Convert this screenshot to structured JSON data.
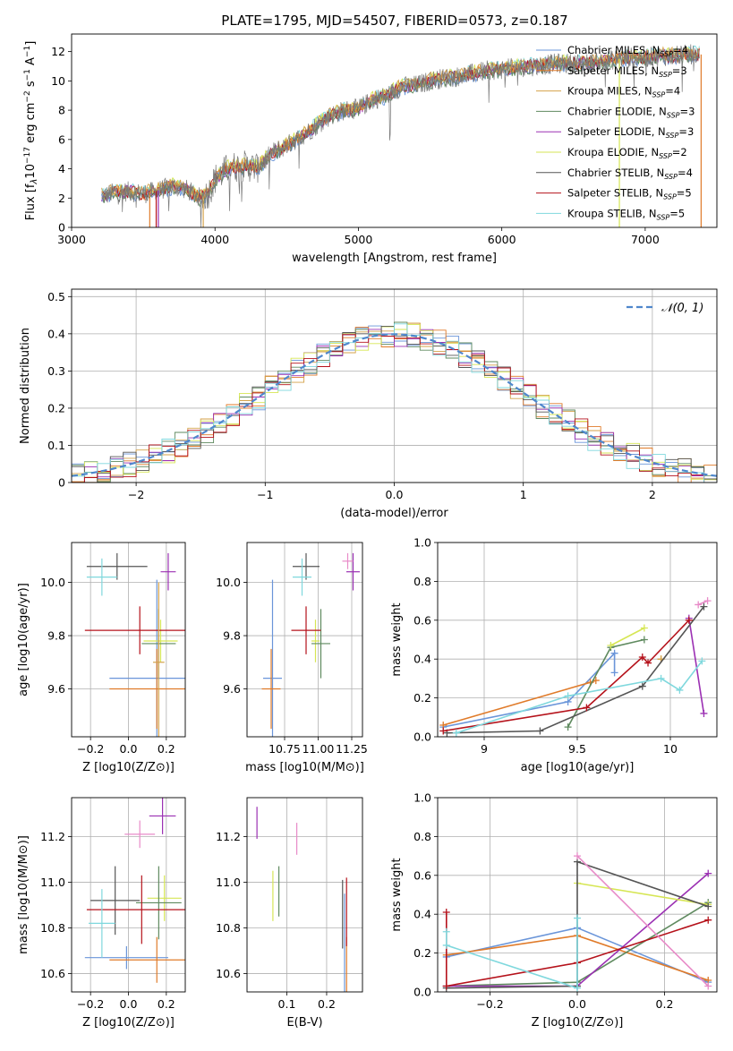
{
  "title": "PLATE=1795, MJD=54507, FIBERID=0573, z=0.187",
  "models": [
    {
      "name": "Chabrier MILES",
      "nssp": "4",
      "color": "#6a95d9"
    },
    {
      "name": "Salpeter MILES",
      "nssp": "3",
      "color": "#e07b2a"
    },
    {
      "name": "Kroupa MILES",
      "nssp": "4",
      "color": "#d4a24a"
    },
    {
      "name": "Chabrier ELODIE",
      "nssp": "3",
      "color": "#5f8a5f"
    },
    {
      "name": "Salpeter ELODIE",
      "nssp": "3",
      "color": "#9b30b3"
    },
    {
      "name": "Kroupa ELODIE",
      "nssp": "2",
      "color": "#d6e654"
    },
    {
      "name": "Chabrier STELIB",
      "nssp": "4",
      "color": "#555555"
    },
    {
      "name": "Salpeter STELIB",
      "nssp": "5",
      "color": "#b5121b"
    },
    {
      "name": "Kroupa STELIB",
      "nssp": "5",
      "color": "#7fd8dd"
    }
  ],
  "chart_data": [
    {
      "type": "line",
      "name": "spectrum",
      "xlabel": "wavelength [Angstrom, rest frame]",
      "ylabel": "Flux [f_λ 10^-17 erg cm^-2 s^-1 A^-1]",
      "xlim": [
        3000,
        7500
      ],
      "ylim": [
        0,
        13.2
      ],
      "xticks": [
        3000,
        4000,
        5000,
        6000,
        7000
      ],
      "yticks": [
        0,
        2,
        4,
        6,
        8,
        10,
        12
      ],
      "legend": "right",
      "continuum": [
        [
          3210,
          2.1
        ],
        [
          3300,
          2.4
        ],
        [
          3400,
          2.45
        ],
        [
          3500,
          2.3
        ],
        [
          3600,
          2.5
        ],
        [
          3700,
          2.8
        ],
        [
          3800,
          2.6
        ],
        [
          3850,
          2.3
        ],
        [
          3900,
          2.0
        ],
        [
          3950,
          2.3
        ],
        [
          4000,
          3.3
        ],
        [
          4100,
          4.1
        ],
        [
          4200,
          4.2
        ],
        [
          4300,
          4.1
        ],
        [
          4400,
          5.1
        ],
        [
          4500,
          5.6
        ],
        [
          4600,
          6.2
        ],
        [
          4700,
          6.9
        ],
        [
          4800,
          7.6
        ],
        [
          4900,
          8.0
        ],
        [
          5000,
          8.1
        ],
        [
          5100,
          8.7
        ],
        [
          5200,
          9.0
        ],
        [
          5300,
          9.6
        ],
        [
          5400,
          9.7
        ],
        [
          5500,
          10.0
        ],
        [
          5600,
          10.2
        ],
        [
          5700,
          10.3
        ],
        [
          5800,
          10.5
        ],
        [
          5900,
          10.7
        ],
        [
          6000,
          10.8
        ],
        [
          6100,
          10.9
        ],
        [
          6200,
          11.0
        ],
        [
          6300,
          11.1
        ],
        [
          6400,
          11.2
        ],
        [
          6500,
          11.2
        ],
        [
          6600,
          11.2
        ],
        [
          6700,
          11.3
        ],
        [
          6800,
          11.5
        ],
        [
          6900,
          11.6
        ],
        [
          7000,
          11.6
        ],
        [
          7100,
          11.7
        ],
        [
          7200,
          11.7
        ],
        [
          7300,
          11.8
        ],
        [
          7380,
          11.8
        ]
      ]
    },
    {
      "type": "bar",
      "name": "residual-histogram",
      "xlabel": "(data-model)/error",
      "ylabel": "Normed distribution",
      "xlim": [
        -2.5,
        2.5
      ],
      "ylim": [
        0,
        0.52
      ],
      "xticks": [
        -2,
        -1,
        0,
        1,
        2
      ],
      "yticks": [
        0.0,
        0.1,
        0.2,
        0.3,
        0.4,
        0.5
      ],
      "legend_label": "𝒩(0, 1)",
      "gaussian": {
        "mean": 0,
        "sigma": 1
      }
    },
    {
      "type": "scatter",
      "name": "age-vs-Z",
      "xlabel": "Z [log10(Z/Z⊙)]",
      "ylabel": "age [log10(age/yr)]",
      "xlim": [
        -0.3,
        0.3
      ],
      "ylim": [
        9.42,
        10.15
      ],
      "xticks": [
        -0.2,
        0.0,
        0.2
      ],
      "yticks": [
        9.6,
        9.8,
        10.0
      ],
      "points": [
        {
          "m": 0,
          "x": 0.15,
          "y": 9.64,
          "xe": 0.25,
          "ye": 0.37
        },
        {
          "m": 1,
          "x": 0.15,
          "y": 9.6,
          "xe": 0.25,
          "ye": 0.15
        },
        {
          "m": 4,
          "x": 0.21,
          "y": 10.04,
          "xe": 0.04,
          "ye": 0.07
        },
        {
          "m": 5,
          "x": 0.17,
          "y": 9.78,
          "xe": 0.09,
          "ye": 0.08
        },
        {
          "m": 3,
          "x": 0.16,
          "y": 9.77,
          "xe": 0.09,
          "ye": 0.13
        },
        {
          "m": 6,
          "x": -0.06,
          "y": 10.06,
          "xe": 0.16,
          "ye": 0.05
        },
        {
          "m": 7,
          "x": 0.06,
          "y": 9.82,
          "xe": 0.29,
          "ye": 0.09
        },
        {
          "m": 8,
          "x": -0.14,
          "y": 10.02,
          "xe": 0.08,
          "ye": 0.07
        },
        {
          "m": 2,
          "x": 0.16,
          "y": 9.7,
          "xe": 0.03,
          "ye": 0.3
        }
      ]
    },
    {
      "type": "scatter",
      "name": "age-vs-mass",
      "xlabel": "mass [log10(M/M⊙)]",
      "ylabel": "",
      "xlim": [
        10.47,
        11.33
      ],
      "ylim": [
        9.42,
        10.15
      ],
      "xticks": [
        10.75,
        11.0,
        11.25
      ],
      "xticklabels": [
        "10.75",
        "11.00",
        "11.25"
      ],
      "yticks": [
        9.6,
        9.8,
        10.0
      ],
      "points": [
        {
          "m": 0,
          "x": 10.66,
          "y": 9.64,
          "xe": 0.07,
          "ye": 0.37
        },
        {
          "m": 1,
          "x": 10.65,
          "y": 9.6,
          "xe": 0.07,
          "ye": 0.15
        },
        {
          "m": 4,
          "x": 11.26,
          "y": 10.04,
          "xe": 0.05,
          "ye": 0.07
        },
        {
          "m": 5,
          "x": 10.98,
          "y": 9.78,
          "xe": 0.03,
          "ye": 0.08
        },
        {
          "m": 3,
          "x": 11.02,
          "y": 9.77,
          "xe": 0.07,
          "ye": 0.13
        },
        {
          "m": 6,
          "x": 10.91,
          "y": 10.06,
          "xe": 0.1,
          "ye": 0.05
        },
        {
          "m": 7,
          "x": 10.91,
          "y": 9.82,
          "xe": 0.11,
          "ye": 0.09
        },
        {
          "m": 8,
          "x": 10.88,
          "y": 10.02,
          "xe": 0.07,
          "ye": 0.07
        },
        {
          "m": 9,
          "x": 11.22,
          "y": 10.08,
          "xe": 0.04,
          "ye": 0.03
        }
      ]
    },
    {
      "type": "line",
      "name": "massweight-vs-age",
      "xlabel": "age [log10(age/yr)]",
      "ylabel": "mass weight",
      "xlim": [
        8.75,
        10.25
      ],
      "ylim": [
        0,
        1.0
      ],
      "xticks": [
        9.0,
        9.5,
        10.0
      ],
      "yticks": [
        0.0,
        0.2,
        0.4,
        0.6,
        0.8,
        1.0
      ],
      "series": [
        {
          "m": 0,
          "x": [
            8.78,
            9.45,
            9.7,
            9.7
          ],
          "y": [
            0.05,
            0.18,
            0.43,
            0.33
          ]
        },
        {
          "m": 1,
          "x": [
            8.78,
            9.57,
            9.6
          ],
          "y": [
            0.06,
            0.28,
            0.29
          ]
        },
        {
          "m": 2,
          "x": [
            9.95,
            9.95
          ],
          "y": [
            0.4,
            0.4
          ]
        },
        {
          "m": 3,
          "x": [
            9.45,
            9.68,
            9.86
          ],
          "y": [
            0.05,
            0.46,
            0.5
          ]
        },
        {
          "m": 4,
          "x": [
            10.1,
            10.18
          ],
          "y": [
            0.61,
            0.12
          ]
        },
        {
          "m": 5,
          "x": [
            9.68,
            9.86
          ],
          "y": [
            0.47,
            0.56
          ]
        },
        {
          "m": 6,
          "x": [
            8.8,
            9.3,
            9.85,
            10.18
          ],
          "y": [
            0.02,
            0.03,
            0.26,
            0.67
          ]
        },
        {
          "m": 7,
          "x": [
            8.78,
            9.55,
            9.85,
            9.88,
            10.1
          ],
          "y": [
            0.03,
            0.15,
            0.41,
            0.38,
            0.6
          ]
        },
        {
          "m": 8,
          "x": [
            8.85,
            9.45,
            9.95,
            10.05,
            10.17
          ],
          "y": [
            0.02,
            0.21,
            0.3,
            0.24,
            0.39
          ]
        },
        {
          "m": 9,
          "x": [
            10.15,
            10.2
          ],
          "y": [
            0.68,
            0.7
          ]
        }
      ]
    },
    {
      "type": "scatter",
      "name": "mass-vs-Z",
      "xlabel": "Z [log10(Z/Z⊙)]",
      "ylabel": "mass [log10(M/M⊙)]",
      "xlim": [
        -0.3,
        0.3
      ],
      "ylim": [
        10.52,
        11.37
      ],
      "xticks": [
        -0.2,
        0.0,
        0.2
      ],
      "yticks": [
        10.6,
        10.8,
        11.0,
        11.2
      ],
      "points": [
        {
          "m": 0,
          "x": -0.01,
          "y": 10.67,
          "xe": 0.22,
          "ye": 0.05
        },
        {
          "m": 1,
          "x": 0.15,
          "y": 10.66,
          "xe": 0.25,
          "ye": 0.1
        },
        {
          "m": 4,
          "x": 0.18,
          "y": 11.29,
          "xe": 0.07,
          "ye": 0.08
        },
        {
          "m": 5,
          "x": 0.19,
          "y": 10.93,
          "xe": 0.09,
          "ye": 0.1
        },
        {
          "m": 3,
          "x": 0.16,
          "y": 10.91,
          "xe": 0.12,
          "ye": 0.16
        },
        {
          "m": 6,
          "x": -0.07,
          "y": 10.92,
          "xe": 0.13,
          "ye": 0.15
        },
        {
          "m": 7,
          "x": 0.07,
          "y": 10.88,
          "xe": 0.29,
          "ye": 0.15
        },
        {
          "m": 8,
          "x": -0.14,
          "y": 10.82,
          "xe": 0.07,
          "ye": 0.15
        },
        {
          "m": 9,
          "x": 0.06,
          "y": 11.21,
          "xe": 0.08,
          "ye": 0.06
        }
      ]
    },
    {
      "type": "scatter",
      "name": "mass-vs-ebv",
      "xlabel": "E(B-V)",
      "ylabel": "",
      "xlim": [
        0.0,
        0.29
      ],
      "ylim": [
        10.52,
        11.37
      ],
      "xticks": [
        0.1,
        0.2
      ],
      "yticks": [
        10.6,
        10.8,
        11.0,
        11.2
      ],
      "points": [
        {
          "m": 0,
          "x": 0.245,
          "y": 10.7,
          "xe": 0,
          "ye": 0.25
        },
        {
          "m": 1,
          "x": 0.25,
          "y": 10.62,
          "xe": 0,
          "ye": 0.14
        },
        {
          "m": 4,
          "x": 0.025,
          "y": 11.26,
          "xe": 0,
          "ye": 0.07
        },
        {
          "m": 5,
          "x": 0.065,
          "y": 10.94,
          "xe": 0,
          "ye": 0.11
        },
        {
          "m": 3,
          "x": 0.08,
          "y": 10.96,
          "xe": 0,
          "ye": 0.11
        },
        {
          "m": 6,
          "x": 0.24,
          "y": 10.86,
          "xe": 0,
          "ye": 0.15
        },
        {
          "m": 7,
          "x": 0.25,
          "y": 10.87,
          "xe": 0,
          "ye": 0.15
        },
        {
          "m": 9,
          "x": 0.125,
          "y": 11.19,
          "xe": 0,
          "ye": 0.07
        }
      ]
    },
    {
      "type": "line",
      "name": "massweight-vs-Z",
      "xlabel": "Z [log10(Z/Z⊙)]",
      "ylabel": "mass weight",
      "xlim": [
        -0.32,
        0.32
      ],
      "ylim": [
        0,
        1.0
      ],
      "xticks": [
        -0.2,
        0.0,
        0.2
      ],
      "yticks": [
        0.0,
        0.2,
        0.4,
        0.6,
        0.8,
        1.0
      ],
      "series": [
        {
          "m": 0,
          "x": [
            -0.3,
            0.0,
            0.3
          ],
          "y": [
            0.18,
            0.33,
            0.05
          ]
        },
        {
          "m": 1,
          "x": [
            -0.3,
            0.0,
            0.3
          ],
          "y": [
            0.19,
            0.29,
            0.06
          ]
        },
        {
          "m": 3,
          "x": [
            -0.3,
            0.0,
            0.3
          ],
          "y": [
            0.03,
            0.05,
            0.46
          ]
        },
        {
          "m": 4,
          "x": [
            -0.3,
            0.0,
            0.3
          ],
          "y": [
            0.03,
            0.03,
            0.61
          ]
        },
        {
          "m": 5,
          "x": [
            0.0,
            0.3
          ],
          "y": [
            0.56,
            0.45
          ]
        },
        {
          "m": 6,
          "x": [
            -0.3,
            0.0,
            0.0,
            0.3
          ],
          "y": [
            0.02,
            0.03,
            0.67,
            0.44
          ]
        },
        {
          "m": 7,
          "x": [
            -0.3,
            -0.3,
            0.0,
            0.3
          ],
          "y": [
            0.41,
            0.03,
            0.15,
            0.37
          ]
        },
        {
          "m": 8,
          "x": [
            -0.3,
            -0.3,
            0.0,
            0.0
          ],
          "y": [
            0.31,
            0.24,
            0.02,
            0.38
          ]
        },
        {
          "m": 9,
          "x": [
            0.0,
            0.3
          ],
          "y": [
            0.7,
            0.03
          ]
        }
      ]
    }
  ],
  "extra_color": "#e88bc8"
}
